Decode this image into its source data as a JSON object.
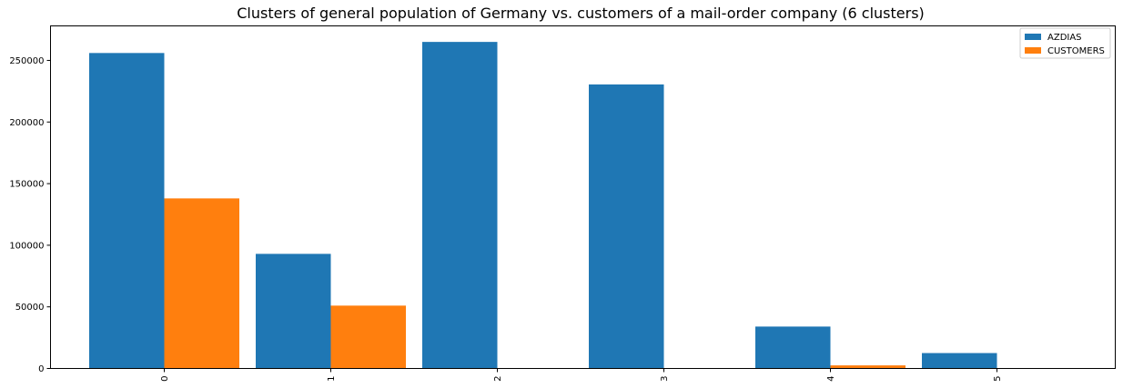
{
  "chart_data": {
    "type": "bar",
    "title": "Clusters of general population of Germany vs. customers of a mail-order company (6 clusters)",
    "xlabel": "",
    "ylabel": "",
    "categories": [
      "0",
      "1",
      "2",
      "3",
      "4",
      "5"
    ],
    "series": [
      {
        "name": "AZDIAS",
        "color": "#1f77b4",
        "values": [
          256000,
          93000,
          265000,
          230500,
          34000,
          12500
        ]
      },
      {
        "name": "CUSTOMERS",
        "color": "#ff7f0e",
        "values": [
          138000,
          51000,
          0,
          0,
          2500,
          0
        ]
      }
    ],
    "ylim": [
      0,
      278000
    ],
    "yticks": [
      0,
      50000,
      100000,
      150000,
      200000,
      250000
    ],
    "ytick_labels": [
      "0",
      "50000",
      "100000",
      "150000",
      "200000",
      "250000"
    ],
    "grid": false,
    "legend_position": "top-right",
    "xtick_rotation": "vertical"
  }
}
